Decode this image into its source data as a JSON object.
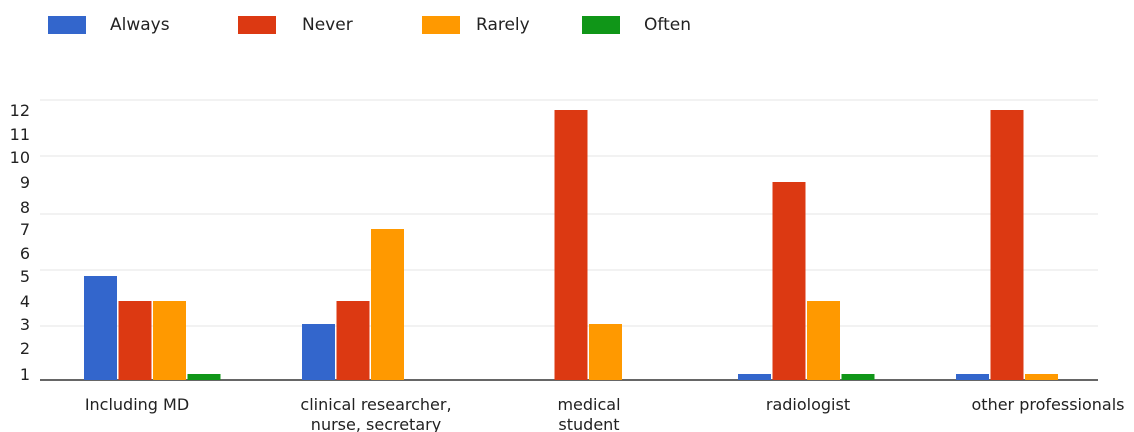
{
  "chart_data": {
    "type": "bar",
    "categories": [
      [
        "Including MD"
      ],
      [
        "clinical researcher,",
        "nurse, secretary"
      ],
      [
        "medical",
        "student"
      ],
      [
        "radiologist"
      ],
      [
        "other professionals"
      ]
    ],
    "series": [
      {
        "name": "Always",
        "color": "#3366cc",
        "values": [
          5,
          3,
          0,
          1,
          1
        ]
      },
      {
        "name": "Never",
        "color": "#dc3912",
        "values": [
          4,
          4,
          12,
          9,
          12
        ]
      },
      {
        "name": "Rarely",
        "color": "#ff9900",
        "values": [
          4,
          7,
          3,
          4,
          1
        ]
      },
      {
        "name": "Often",
        "color": "#109618",
        "values": [
          1,
          0,
          0,
          1,
          0
        ]
      }
    ],
    "y_ticks": [
      "1",
      "2",
      "3",
      "4",
      "5",
      "6",
      "7",
      "8",
      "9",
      "10",
      "11",
      "12"
    ],
    "ylim": [
      0,
      12
    ],
    "grid": true,
    "legend_position": "top-left"
  }
}
